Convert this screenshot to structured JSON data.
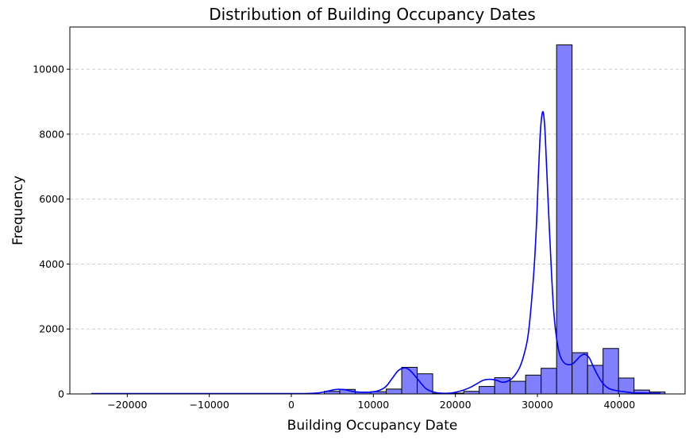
{
  "chart_data": {
    "type": "bar",
    "subtype": "histogram",
    "title": "Distribution of Building Occupancy Dates",
    "xlabel": "Building Occupancy Date",
    "ylabel": "Frequency",
    "xlim": [
      -27000,
      48000
    ],
    "ylim": [
      0,
      11300
    ],
    "xticks": [
      -20000,
      -10000,
      0,
      10000,
      20000,
      30000,
      40000
    ],
    "yticks": [
      0,
      2000,
      4000,
      6000,
      8000,
      10000
    ],
    "grid": {
      "y": true,
      "x": false,
      "style": "dashed"
    },
    "colors": {
      "bar_fill": "#8080ff",
      "bar_edge": "#000000",
      "kde_line": "#0000ff",
      "grid": "#c8c8c8"
    },
    "bins": {
      "edges": [
        4018,
        5906,
        7794,
        9682,
        11570,
        13458,
        15346,
        17234,
        19122,
        21010,
        22898,
        24786,
        26674,
        28562,
        30450,
        32338,
        34226,
        36114,
        38002,
        39890,
        41778,
        43666,
        45554
      ],
      "counts": [
        80,
        140,
        55,
        70,
        150,
        820,
        620,
        20,
        25,
        80,
        230,
        500,
        390,
        580,
        790,
        10750,
        1270,
        880,
        1400,
        490,
        120,
        60
      ]
    },
    "kde": {
      "x": [
        -24400,
        -15000,
        -5000,
        0,
        2000,
        3500,
        4500,
        5500,
        6500,
        7500,
        8500,
        9500,
        10500,
        11500,
        12300,
        13000,
        13700,
        14300,
        15000,
        15800,
        16500,
        17500,
        18500,
        19500,
        20300,
        21000,
        21800,
        22600,
        23400,
        24200,
        25000,
        25800,
        26600,
        27200,
        27800,
        28300,
        28800,
        29200,
        29600,
        29900,
        30100,
        30300,
        30500,
        30700,
        30900,
        31100,
        31400,
        31700,
        32000,
        32400,
        32800,
        33300,
        33800,
        34300,
        34800,
        35300,
        35800,
        36300,
        36800,
        37400,
        38000,
        38700,
        39500,
        40500,
        41500,
        42500,
        43500,
        45000
      ],
      "y": [
        10,
        10,
        10,
        10,
        15,
        40,
        90,
        140,
        130,
        75,
        55,
        55,
        90,
        220,
        480,
        710,
        800,
        760,
        580,
        330,
        150,
        50,
        20,
        30,
        70,
        120,
        200,
        310,
        420,
        450,
        420,
        360,
        420,
        560,
        800,
        1150,
        1700,
        2600,
        3900,
        5300,
        6600,
        7800,
        8500,
        8680,
        8200,
        7100,
        5400,
        3800,
        2500,
        1600,
        1150,
        950,
        900,
        930,
        1050,
        1180,
        1220,
        1120,
        850,
        550,
        320,
        170,
        110,
        70,
        40,
        30,
        25,
        20
      ]
    }
  }
}
